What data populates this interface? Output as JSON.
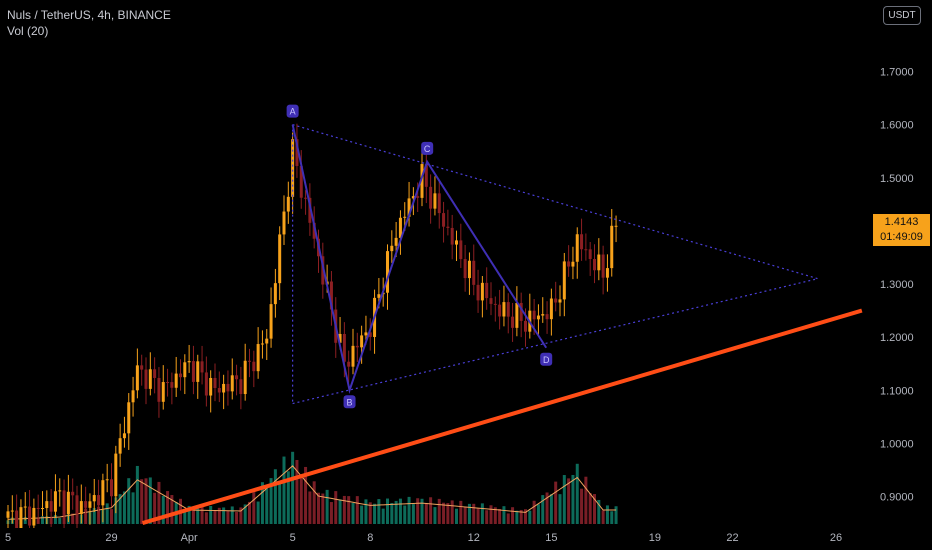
{
  "legend": {
    "symbol_line": "Nuls / TetherUS, 4h, BINANCE",
    "volume_line": "Vol (20)"
  },
  "currency": "USDT",
  "last_price": {
    "price": "1.4143",
    "countdown": "01:49:09"
  },
  "colors": {
    "background": "#000000",
    "up": "#f7a21b",
    "down": "#8c1f22",
    "pattern": "#3f2fb5",
    "trendline": "#ff4d16",
    "volume_ma": "#f0a35f"
  },
  "chart_data": {
    "type": "candlestick",
    "title": "",
    "y_ticks": [
      "1.7000",
      "1.6000",
      "1.5000",
      "1.4000",
      "1.3000",
      "1.2000",
      "1.1000",
      "1.0000",
      "0.9000"
    ],
    "ylim": [
      0.85,
      1.78
    ],
    "x_ticks": [
      "5",
      "29",
      "Apr",
      "5",
      "8",
      "12",
      "15",
      "19",
      "22",
      "26"
    ],
    "x_tick_dates": [
      "Mar 25",
      "Mar 29",
      "Apr 1",
      "Apr 5",
      "Apr 8",
      "Apr 12",
      "Apr 15",
      "Apr 19",
      "Apr 22",
      "Apr 26"
    ],
    "xlim": [
      "Mar 25",
      "Apr 27"
    ],
    "grid": false,
    "price_series": [
      {
        "date": "Mar 25",
        "close": 0.86
      },
      {
        "date": "Mar 26",
        "close": 0.87
      },
      {
        "date": "Mar 27",
        "close": 0.9
      },
      {
        "date": "Mar 28",
        "close": 0.88
      },
      {
        "date": "Mar 29",
        "close": 0.93
      },
      {
        "date": "Mar 30",
        "close": 1.14
      },
      {
        "date": "Mar 31",
        "close": 1.1
      },
      {
        "date": "Apr 1",
        "close": 1.15
      },
      {
        "date": "Apr 2",
        "close": 1.1
      },
      {
        "date": "Apr 3",
        "close": 1.12
      },
      {
        "date": "Apr 4",
        "close": 1.2
      },
      {
        "date": "Apr 5",
        "close": 1.55
      },
      {
        "date": "Apr 6",
        "close": 1.35
      },
      {
        "date": "Apr 7",
        "close": 1.15
      },
      {
        "date": "Apr 8",
        "close": 1.22
      },
      {
        "date": "Apr 9",
        "close": 1.4
      },
      {
        "date": "Apr 10",
        "close": 1.5
      },
      {
        "date": "Apr 11",
        "close": 1.4
      },
      {
        "date": "Apr 12",
        "close": 1.3
      },
      {
        "date": "Apr 13",
        "close": 1.25
      },
      {
        "date": "Apr 14",
        "close": 1.23
      },
      {
        "date": "Apr 15",
        "close": 1.25
      },
      {
        "date": "Apr 16",
        "close": 1.38
      },
      {
        "date": "Apr 17",
        "close": 1.32
      },
      {
        "date": "Apr 17.5",
        "close": 1.4143
      }
    ],
    "volume_series": [
      {
        "date": "Mar 25",
        "value": 0.1
      },
      {
        "date": "Mar 27",
        "value": 0.15
      },
      {
        "date": "Mar 29",
        "value": 0.35
      },
      {
        "date": "Mar 30",
        "value": 0.95
      },
      {
        "date": "Apr 1",
        "value": 0.3
      },
      {
        "date": "Apr 3",
        "value": 0.28
      },
      {
        "date": "Apr 5",
        "value": 1.25
      },
      {
        "date": "Apr 6",
        "value": 0.6
      },
      {
        "date": "Apr 8",
        "value": 0.4
      },
      {
        "date": "Apr 10",
        "value": 0.45
      },
      {
        "date": "Apr 12",
        "value": 0.35
      },
      {
        "date": "Apr 14",
        "value": 0.25
      },
      {
        "date": "Apr 16",
        "value": 1.0
      },
      {
        "date": "Apr 17",
        "value": 0.3
      }
    ],
    "pattern_points": [
      {
        "label": "A",
        "date": "Apr 5",
        "price": 1.6
      },
      {
        "label": "B",
        "date": "Apr 7.2",
        "price": 1.1
      },
      {
        "label": "C",
        "date": "Apr 10.2",
        "price": 1.53
      },
      {
        "label": "D",
        "date": "Apr 14.8",
        "price": 1.18
      }
    ],
    "triangle_lines": [
      {
        "from": {
          "date": "Apr 5",
          "price": 1.6
        },
        "to": {
          "date": "Apr 25.3",
          "price": 1.31
        }
      },
      {
        "from": {
          "date": "Apr 5",
          "price": 1.075
        },
        "to": {
          "date": "Apr 25.3",
          "price": 1.31
        }
      },
      {
        "from": {
          "date": "Apr 5",
          "price": 1.6
        },
        "to": {
          "date": "Apr 5",
          "price": 1.075
        }
      }
    ],
    "trendline": {
      "from": {
        "date": "Mar 30.2",
        "price": 0.85
      },
      "to": {
        "date": "Apr 27",
        "price": 1.25
      }
    }
  }
}
